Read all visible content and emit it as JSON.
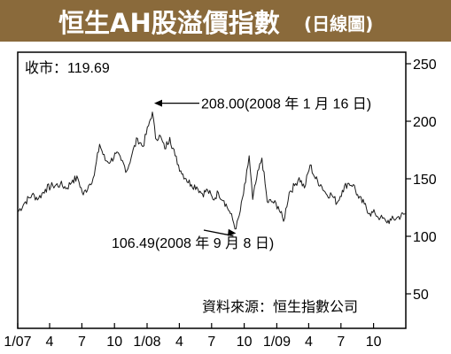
{
  "chart_data": {
    "type": "line",
    "title": "恒生AH股溢價指數",
    "subtitle": "(日線圖)",
    "close_label": "收市：119.69",
    "source": "資料來源：恒生指數公司",
    "annotations": [
      {
        "text": "208.00(2008 年 1 月 16 日)",
        "x": "2008-01-16",
        "y": 208.0
      },
      {
        "text": "106.49(2008 年 9 月 8 日)",
        "x": "2008-09-08",
        "y": 106.49
      }
    ],
    "y_ticks": [
      "250",
      "200",
      "150",
      "100",
      "50"
    ],
    "y_tick_values": [
      250,
      200,
      150,
      100,
      50
    ],
    "ylim": [
      20,
      260
    ],
    "x_ticks": [
      "1/07",
      "4",
      "7",
      "10",
      "1/08",
      "4",
      "7",
      "10",
      "1/09",
      "4",
      "7",
      "10"
    ],
    "x_tick_dates": [
      "2007-01-01",
      "2007-04-01",
      "2007-07-01",
      "2007-10-01",
      "2008-01-01",
      "2008-04-01",
      "2008-07-01",
      "2008-10-01",
      "2009-01-01",
      "2009-04-01",
      "2009-07-01",
      "2009-10-01"
    ],
    "xlim": [
      "2007-01-01",
      "2009-12-31"
    ],
    "x": [
      "2007-01-01",
      "2007-01-20",
      "2007-02-10",
      "2007-03-01",
      "2007-03-20",
      "2007-04-10",
      "2007-05-01",
      "2007-05-20",
      "2007-06-05",
      "2007-06-20",
      "2007-07-05",
      "2007-07-20",
      "2007-08-05",
      "2007-08-20",
      "2007-09-05",
      "2007-09-20",
      "2007-10-05",
      "2007-10-20",
      "2007-11-05",
      "2007-11-20",
      "2007-12-05",
      "2007-12-20",
      "2008-01-05",
      "2008-01-16",
      "2008-01-25",
      "2008-02-05",
      "2008-02-20",
      "2008-03-05",
      "2008-03-20",
      "2008-04-05",
      "2008-04-20",
      "2008-05-05",
      "2008-05-20",
      "2008-06-05",
      "2008-06-20",
      "2008-07-05",
      "2008-07-20",
      "2008-08-05",
      "2008-08-20",
      "2008-09-08",
      "2008-09-20",
      "2008-10-05",
      "2008-10-15",
      "2008-10-25",
      "2008-11-05",
      "2008-11-20",
      "2008-12-05",
      "2008-12-20",
      "2009-01-05",
      "2009-01-20",
      "2009-02-05",
      "2009-02-20",
      "2009-03-05",
      "2009-03-20",
      "2009-04-05",
      "2009-04-20",
      "2009-05-05",
      "2009-05-20",
      "2009-06-05",
      "2009-06-20",
      "2009-07-05",
      "2009-07-20",
      "2009-08-05",
      "2009-08-20",
      "2009-09-05",
      "2009-09-20",
      "2009-10-05",
      "2009-10-20",
      "2009-11-05",
      "2009-11-20",
      "2009-12-05",
      "2009-12-31"
    ],
    "y": [
      121,
      129,
      136,
      133,
      141,
      144,
      145,
      142,
      149,
      150,
      136,
      144,
      153,
      180,
      166,
      165,
      172,
      166,
      157,
      172,
      185,
      178,
      196,
      208,
      185,
      188,
      176,
      186,
      170,
      157,
      150,
      145,
      143,
      137,
      140,
      132,
      138,
      131,
      122,
      106.49,
      122,
      147,
      170,
      132,
      150,
      168,
      130,
      130,
      126,
      113,
      138,
      144,
      151,
      142,
      162,
      150,
      145,
      137,
      136,
      129,
      140,
      146,
      145,
      133,
      128,
      120,
      120,
      116,
      113,
      114,
      116,
      119.69
    ]
  }
}
